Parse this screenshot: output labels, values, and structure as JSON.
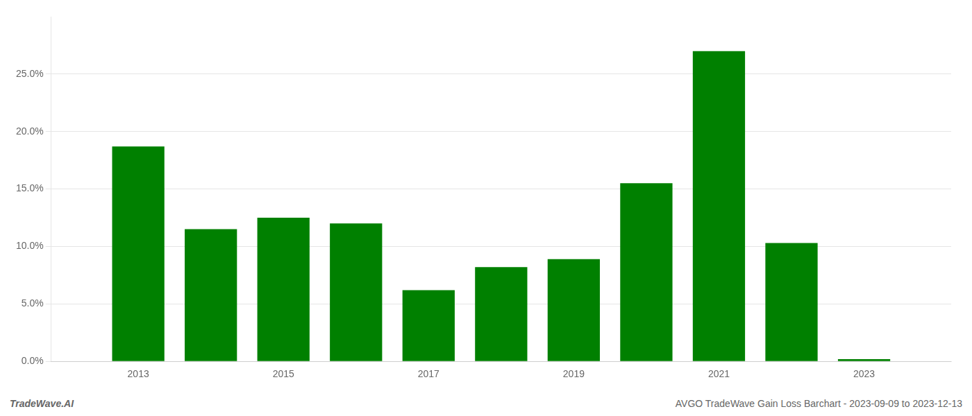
{
  "chart_data": {
    "type": "bar",
    "x": [
      2013,
      2014,
      2015,
      2016,
      2017,
      2018,
      2019,
      2020,
      2021,
      2022,
      2023
    ],
    "values": [
      0.187,
      0.115,
      0.125,
      0.12,
      0.062,
      0.082,
      0.089,
      0.155,
      0.27,
      0.103,
      0.002
    ],
    "color": "#008000",
    "xlim": [
      2011.8,
      2024.2
    ],
    "xticks": [
      2013,
      2015,
      2017,
      2019,
      2021,
      2023
    ],
    "ylim": [
      0,
      0.3
    ],
    "yticks": [
      {
        "value": 0.0,
        "label": "0.0%"
      },
      {
        "value": 0.05,
        "label": "5.0%"
      },
      {
        "value": 0.1,
        "label": "10.0%"
      },
      {
        "value": 0.15,
        "label": "15.0%"
      },
      {
        "value": 0.2,
        "label": "20.0%"
      },
      {
        "value": 0.25,
        "label": "25.0%"
      }
    ],
    "grid": true,
    "annotations": [
      "TradeWave.AI",
      "AVGO TradeWave Gain Loss Barchart - 2023-09-09 to 2023-12-13"
    ]
  }
}
